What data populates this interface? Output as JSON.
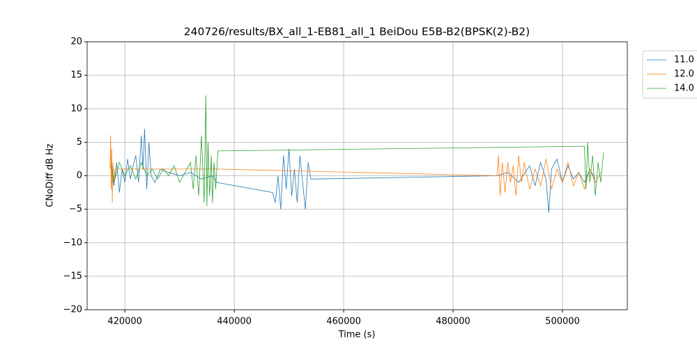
{
  "chart_data": {
    "type": "line",
    "title": "240726/results/BX_all_1-EB81_all_1 BeiDou E5B-B2(BPSK(2)-B2)",
    "xlabel": "Time (s)",
    "ylabel": "CNoDiff dB Hz",
    "xlim": [
      413100,
      511850
    ],
    "ylim": [
      -20,
      20
    ],
    "xticks": [
      420000,
      440000,
      460000,
      480000,
      500000
    ],
    "yticks": [
      {
        "value": -20,
        "label": "−20"
      },
      {
        "value": -15,
        "label": "−15"
      },
      {
        "value": -10,
        "label": "−10"
      },
      {
        "value": -5,
        "label": "−5"
      },
      0,
      5,
      10,
      15,
      20
    ],
    "grid": true,
    "legend": "outside-upper-right",
    "series": [
      {
        "name": "11.0",
        "color": "#1f77b4",
        "x": [
          417600,
          418000,
          418500,
          419000,
          419500,
          420000,
          420500,
          421000,
          421500,
          422000,
          422500,
          423000,
          423300,
          423600,
          424000,
          424400,
          424800,
          425500,
          426500,
          428000,
          430000,
          432000,
          434000,
          436000,
          436800,
          447000,
          447500,
          448000,
          448500,
          449000,
          449500,
          450000,
          450500,
          451000,
          451500,
          452000,
          452500,
          453000,
          453500,
          454000,
          488000,
          490000,
          492000,
          494000,
          495000,
          496000,
          497000,
          497500,
          498000,
          499000,
          500000,
          501000,
          502000,
          503000,
          504000,
          505000,
          506000
        ],
        "values": [
          0.5,
          -1.5,
          2,
          -2.5,
          1,
          -1,
          2.5,
          -0.5,
          1.5,
          3,
          -1,
          6,
          1,
          7,
          -2,
          5,
          0,
          -1,
          1,
          0.5,
          0,
          0.5,
          -0.5,
          0,
          -1,
          -2.5,
          -4,
          0,
          -5,
          3,
          -2,
          4,
          -3,
          1,
          -4,
          3,
          -1,
          -5,
          2,
          -0.5,
          0,
          0.5,
          -1,
          1.5,
          -1.5,
          2,
          -0.5,
          -5.5,
          1,
          2.5,
          -1,
          1.5,
          -0.5,
          0.5,
          -1,
          1,
          -0.5
        ]
      },
      {
        "name": "12.0",
        "color": "#ff7f0e",
        "x": [
          417300,
          417400,
          417500,
          417600,
          417700,
          417800,
          418000,
          418200,
          437000,
          488000,
          488300,
          488600,
          489000,
          489500,
          490000,
          490500,
          491000,
          491500,
          492000,
          492500,
          493000,
          494000,
          495000,
          496000,
          497000,
          498000,
          499000,
          500000,
          501000,
          502000,
          503000,
          504000,
          505000,
          506000,
          507000
        ],
        "values": [
          1,
          6,
          -2,
          4,
          -4,
          2,
          -1,
          1,
          1,
          0,
          3,
          -3,
          2,
          -2.5,
          2,
          -1,
          1.5,
          -3,
          3,
          -1,
          2,
          -2,
          1,
          -1.5,
          2.5,
          -2,
          1,
          -1,
          2,
          -1.5,
          0.5,
          -2,
          1,
          -1,
          0.5
        ]
      },
      {
        "name": "14.0",
        "color": "#2ca02c",
        "x": [
          417600,
          418000,
          419000,
          420000,
          421000,
          422000,
          423000,
          424000,
          425000,
          426000,
          427000,
          428000,
          429000,
          430000,
          431000,
          432000,
          432500,
          433000,
          433500,
          434000,
          434500,
          434800,
          435000,
          435200,
          435500,
          435800,
          436000,
          436300,
          436600,
          437000,
          504000,
          504300,
          504600,
          505000,
          505500,
          506000,
          506500,
          507000,
          507500
        ],
        "values": [
          1.5,
          -1,
          2,
          0,
          1.5,
          -0.5,
          2,
          0,
          1,
          -0.5,
          1,
          0,
          1.5,
          -1,
          0.5,
          2,
          -2,
          3,
          -3,
          6,
          -4,
          12,
          -4.5,
          5,
          -3,
          3,
          -4,
          2,
          -2,
          3.7,
          4.4,
          -2,
          5,
          -1,
          3,
          -3,
          2,
          -1,
          3.5
        ]
      }
    ]
  }
}
